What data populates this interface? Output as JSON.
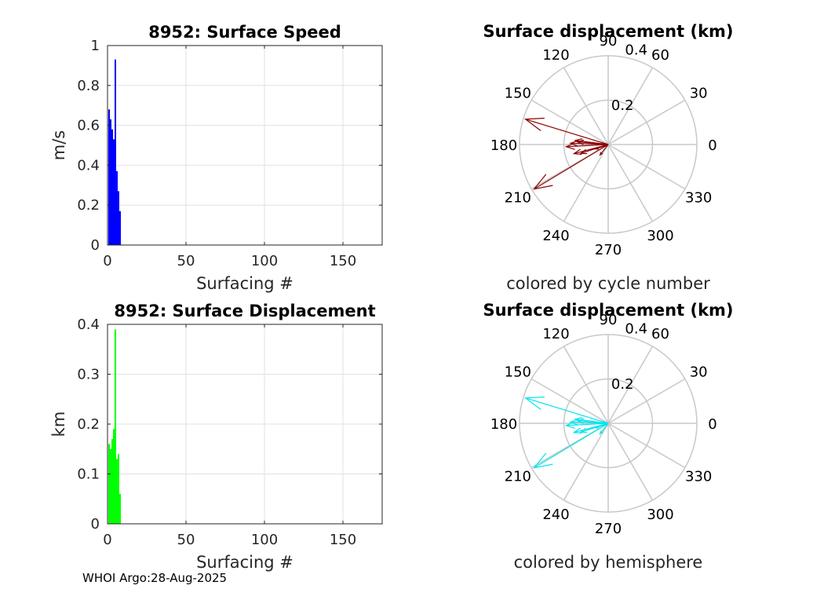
{
  "footer": "WHOI Argo:28-Aug-2025",
  "chart_data": [
    {
      "type": "bar",
      "title": "8952: Surface Speed",
      "xlabel": "Surfacing #",
      "ylabel": "m/s",
      "xlim": [
        0,
        175
      ],
      "ylim": [
        0,
        1
      ],
      "xticks": [
        0,
        50,
        100,
        150
      ],
      "yticks": [
        0,
        0.2,
        0.4,
        0.6,
        0.8,
        1
      ],
      "ytick_labels": [
        "0",
        "0.2",
        "0.4",
        "0.6",
        "0.8",
        "1"
      ],
      "grid": true,
      "color": "#0000ff",
      "x": [
        1,
        2,
        3,
        4,
        5,
        6,
        7,
        8
      ],
      "values": [
        0.68,
        0.63,
        0.58,
        0.53,
        0.93,
        0.37,
        0.27,
        0.17
      ]
    },
    {
      "type": "bar",
      "title": "8952: Surface Displacement",
      "xlabel": "Surfacing #",
      "ylabel": "km",
      "xlim": [
        0,
        175
      ],
      "ylim": [
        0,
        0.4
      ],
      "xticks": [
        0,
        50,
        100,
        150
      ],
      "yticks": [
        0,
        0.1,
        0.2,
        0.3,
        0.4
      ],
      "ytick_labels": [
        "0",
        "0.1",
        "0.2",
        "0.3",
        "0.4"
      ],
      "grid": true,
      "color": "#00ff00",
      "x": [
        1,
        2,
        3,
        4,
        5,
        6,
        7,
        8
      ],
      "values": [
        0.16,
        0.15,
        0.17,
        0.19,
        0.39,
        0.13,
        0.14,
        0.06
      ]
    },
    {
      "type": "polar",
      "title": "Surface displacement (km)",
      "subtitle": "colored by cycle number",
      "rmax": 0.4,
      "rticks": [
        "0.2",
        "0.4"
      ],
      "angle_labels": [
        "0",
        "30",
        "60",
        "90",
        "120",
        "150",
        "180",
        "210",
        "240",
        "270",
        "300",
        "330"
      ],
      "color": "#8b0000",
      "vectors": [
        {
          "r": 0.39,
          "theta": 163
        },
        {
          "r": 0.16,
          "theta": 195
        },
        {
          "r": 0.15,
          "theta": 173
        },
        {
          "r": 0.17,
          "theta": 178
        },
        {
          "r": 0.19,
          "theta": 183
        },
        {
          "r": 0.39,
          "theta": 211
        },
        {
          "r": 0.13,
          "theta": 198
        },
        {
          "r": 0.14,
          "theta": 175
        },
        {
          "r": 0.06,
          "theta": 232
        },
        {
          "r": 0.06,
          "theta": 200
        }
      ]
    },
    {
      "type": "polar",
      "title": "Surface displacement (km)",
      "subtitle": "colored by hemisphere",
      "rmax": 0.4,
      "rticks": [
        "0.2",
        "0.4"
      ],
      "angle_labels": [
        "0",
        "30",
        "60",
        "90",
        "120",
        "150",
        "180",
        "210",
        "240",
        "270",
        "300",
        "330"
      ],
      "color": "#00e5ee",
      "vectors": [
        {
          "r": 0.39,
          "theta": 163
        },
        {
          "r": 0.16,
          "theta": 195
        },
        {
          "r": 0.15,
          "theta": 173
        },
        {
          "r": 0.17,
          "theta": 178
        },
        {
          "r": 0.19,
          "theta": 183
        },
        {
          "r": 0.39,
          "theta": 211
        },
        {
          "r": 0.13,
          "theta": 198
        },
        {
          "r": 0.14,
          "theta": 175
        },
        {
          "r": 0.06,
          "theta": 232
        },
        {
          "r": 0.06,
          "theta": 200
        }
      ]
    }
  ]
}
